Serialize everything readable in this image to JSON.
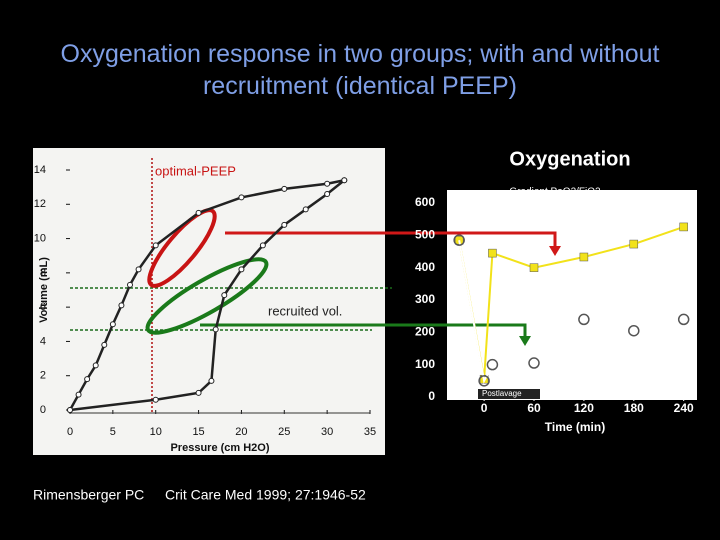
{
  "title": "Oxygenation response in two groups; with and without recruitment (identical PEEP)",
  "citation": {
    "author": "Rimensberger PC",
    "journal": "Crit Care Med 1999; 27:1946-52"
  },
  "chart_data": [
    {
      "type": "line",
      "xlabel": "Pressure (cm H2O)",
      "ylabel": "Volume (mL)",
      "xlim": [
        0,
        35
      ],
      "ylim": [
        0,
        14
      ],
      "xticks": [
        0,
        5,
        10,
        15,
        20,
        25,
        30,
        35
      ],
      "yticks": [
        0,
        2,
        4,
        6,
        8,
        10,
        12,
        14
      ],
      "annotations": [
        "optimal-PEEP",
        "recruited vol."
      ],
      "series": [
        {
          "color": "#222222",
          "marker": "circle",
          "x": [
            0,
            10,
            15,
            16.5,
            17,
            18,
            20,
            22.5,
            25,
            27.5,
            30,
            32
          ],
          "values": [
            0,
            0.6,
            1,
            1.7,
            4.7,
            6.7,
            8.2,
            9.6,
            10.8,
            11.7,
            12.6,
            13.4
          ]
        },
        {
          "color": "#222222",
          "marker": "circle",
          "x": [
            32,
            30,
            25,
            20,
            15,
            10,
            8,
            7,
            6,
            5,
            4,
            3,
            2,
            1,
            0
          ],
          "values": [
            13.4,
            13.2,
            12.9,
            12.4,
            11.5,
            9.6,
            8.2,
            7.3,
            6.1,
            5,
            3.8,
            2.6,
            1.8,
            0.9,
            0
          ]
        }
      ]
    },
    {
      "type": "line",
      "title": "Oxygenation",
      "subtitle": "Gradient PaO2/FiO2",
      "xlabel": "Time (min)",
      "annotations": [
        "Postlavage"
      ],
      "xlim": [
        -35,
        250
      ],
      "ylim": [
        0,
        600
      ],
      "xticks": [
        0,
        60,
        120,
        180,
        240
      ],
      "yticks": [
        0,
        100,
        200,
        300,
        400,
        500,
        600
      ],
      "x": [
        -30,
        0,
        10,
        60,
        120,
        180,
        240
      ],
      "series": [
        {
          "color": "#f2e21a",
          "marker": "square",
          "values": [
            485,
            55,
            445,
            400,
            433,
            473,
            526
          ]
        },
        {
          "color": "#ffffff",
          "marker": "circle",
          "values": [
            485,
            50,
            100,
            105,
            240,
            205,
            240
          ]
        }
      ]
    }
  ]
}
